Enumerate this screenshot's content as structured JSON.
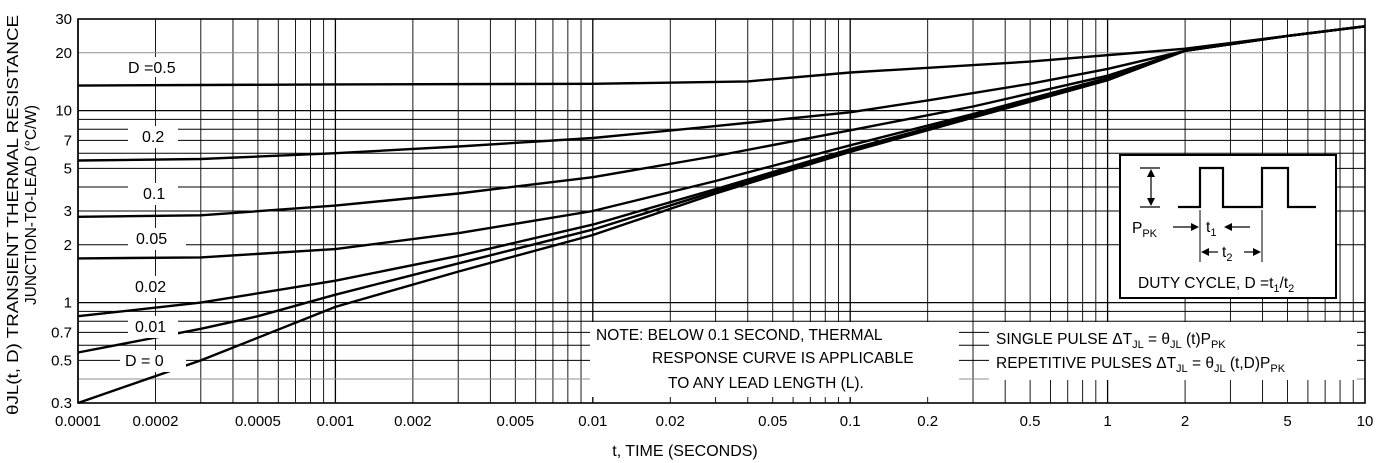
{
  "chart_data": {
    "type": "line",
    "xscale": "log",
    "yscale": "log",
    "xlim": [
      0.0001,
      10
    ],
    "ylim": [
      0.3,
      30
    ],
    "xticks": [
      0.0001,
      0.0002,
      0.0005,
      0.001,
      0.002,
      0.005,
      0.01,
      0.02,
      0.05,
      0.1,
      0.2,
      0.5,
      1,
      2,
      5,
      10
    ],
    "xtick_labels": [
      "0.0001",
      "0.0002",
      "0.0005",
      "0.001",
      "0.002",
      "0.005",
      "0.01",
      "0.02",
      "0.05",
      "0.1",
      "0.2",
      "0.5",
      "1",
      "2",
      "5",
      "10"
    ],
    "yticks": [
      0.3,
      0.5,
      0.7,
      1,
      2,
      3,
      5,
      7,
      10,
      20,
      30
    ],
    "ytick_labels": [
      "0.3",
      "0.5",
      "0.7",
      "1",
      "2",
      "3",
      "5",
      "7",
      "10",
      "20",
      "30"
    ],
    "xlabel": "t, TIME (SECONDS)",
    "ylabel_line1": "θJL(t, D) TRANSIENT THERMAL RESISTANCE",
    "ylabel_line2": "JUNCTION-TO-LEAD (°C/W)",
    "grid": true,
    "series": [
      {
        "name": "D =0.5",
        "x": [
          0.0001,
          0.0003,
          0.001,
          0.01,
          0.04,
          0.1,
          0.5,
          2,
          5,
          10
        ],
        "y": [
          13.5,
          13.6,
          13.7,
          13.8,
          14.2,
          15.8,
          18,
          21,
          24.5,
          27.5
        ]
      },
      {
        "name": "0.2",
        "x": [
          0.0001,
          0.0003,
          0.001,
          0.003,
          0.01,
          0.03,
          0.1,
          0.2,
          0.5,
          1,
          2,
          5,
          10
        ],
        "y": [
          5.5,
          5.6,
          6.0,
          6.5,
          7.2,
          8.3,
          9.8,
          11.3,
          13.8,
          16.5,
          20.5,
          24.5,
          27.5
        ]
      },
      {
        "name": "0.1",
        "x": [
          0.0001,
          0.0003,
          0.001,
          0.003,
          0.01,
          0.03,
          0.1,
          0.3,
          1,
          2,
          5,
          10
        ],
        "y": [
          2.8,
          2.85,
          3.2,
          3.7,
          4.5,
          5.8,
          7.9,
          10.5,
          15.2,
          20.5,
          24.5,
          27.5
        ]
      },
      {
        "name": "0.05",
        "x": [
          0.0001,
          0.0003,
          0.001,
          0.003,
          0.01,
          0.03,
          0.1,
          0.3,
          1,
          2,
          5,
          10
        ],
        "y": [
          1.7,
          1.72,
          1.9,
          2.3,
          3.0,
          4.3,
          6.6,
          9.6,
          14.8,
          20.5,
          24.5,
          27.5
        ]
      },
      {
        "name": "0.02",
        "x": [
          0.0001,
          0.0003,
          0.001,
          0.003,
          0.01,
          0.03,
          0.1,
          0.3,
          1,
          2,
          5,
          10
        ],
        "y": [
          0.85,
          1.0,
          1.3,
          1.75,
          2.55,
          3.9,
          6.3,
          9.4,
          14.6,
          20.5,
          24.5,
          27.5
        ]
      },
      {
        "name": "0.01",
        "x": [
          0.0001,
          0.0003,
          0.0005,
          0.001,
          0.003,
          0.01,
          0.03,
          0.1,
          0.3,
          1,
          2,
          5,
          10
        ],
        "y": [
          0.55,
          0.73,
          0.85,
          1.1,
          1.6,
          2.4,
          3.8,
          6.2,
          9.3,
          14.5,
          20.5,
          24.5,
          27.5
        ]
      },
      {
        "name": "D = 0",
        "x": [
          0.0001,
          0.0003,
          0.001,
          0.003,
          0.01,
          0.03,
          0.1,
          0.3,
          1,
          2,
          5,
          10
        ],
        "y": [
          0.3,
          0.5,
          0.95,
          1.45,
          2.25,
          3.7,
          6.1,
          9.2,
          14.4,
          20.5,
          24.5,
          27.5
        ]
      }
    ],
    "note": [
      "NOTE: BELOW 0.1 SECOND, THERMAL",
      "RESPONSE CURVE IS APPLICABLE",
      "TO ANY LEAD LENGTH (L)."
    ],
    "equations": {
      "single": {
        "text": "SINGLE PULSE ΔT",
        "sub1": "JL",
        "mid": " = θ",
        "sub2": "JL",
        "end": " (t)P",
        "sub3": "PK"
      },
      "repetitive": {
        "text": "REPETITIVE PULSES ΔT",
        "sub1": "JL",
        "mid": " = θ",
        "sub2": "JL",
        "end": " (t,D)P",
        "sub3": "PK"
      }
    },
    "inset": {
      "ppk_label": "P",
      "ppk_sub": "PK",
      "t1_label": "t",
      "t1_sub": "1",
      "t2_label": "t",
      "t2_sub": "2",
      "duty_text": "DUTY CYCLE, D =t",
      "duty_sub1": "1",
      "duty_slash": "/t",
      "duty_sub2": "2"
    }
  }
}
